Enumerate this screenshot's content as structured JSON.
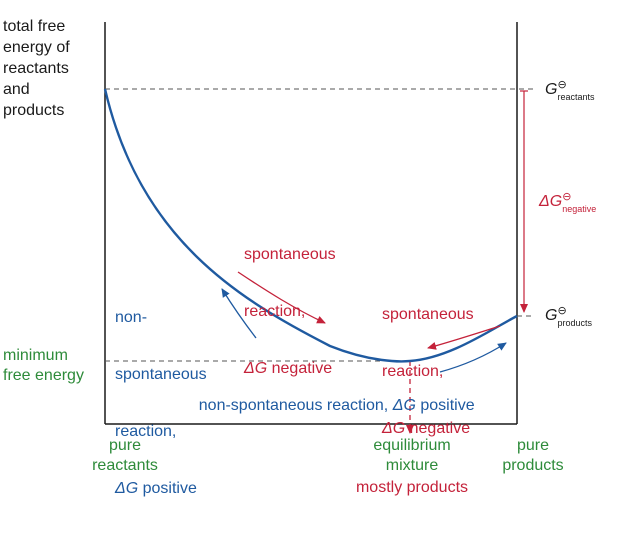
{
  "y_axis_label": "total free\nenergy of\nreactants\nand\nproducts",
  "minimum_label": "minimum\nfree energy",
  "x_left_label": "pure\nreactants",
  "x_middle_label": "equilibrium\nmixture",
  "x_middle_sub_label": "mostly products",
  "x_right_label": "pure\nproducts",
  "g_reactants": {
    "symbol": "G",
    "superscript": "⊖",
    "subscript": "reactants"
  },
  "g_products": {
    "symbol": "G",
    "superscript": "⊖",
    "subscript": "products"
  },
  "delta_g": {
    "symbol": "ΔG",
    "superscript": "⊖",
    "subscript": "negative"
  },
  "spont_left": {
    "line1": "spontaneous",
    "line2": "reaction,",
    "line3_italic": "ΔG",
    "line3_rest": " negative"
  },
  "spont_right": {
    "line1": "spontaneous",
    "line2": "reaction,",
    "line3_italic": "ΔG",
    "line3_rest": " negative"
  },
  "nonspont_left": {
    "line1": "non-",
    "line2": "spontaneous",
    "line3": "reaction,",
    "line4_italic": "ΔG",
    "line4_rest": " positive"
  },
  "nonspont_bottom": {
    "text": "non-spontaneous reaction, ",
    "italic": "ΔG",
    "rest": " positive"
  },
  "colors": {
    "curve": "#1f5aa0",
    "red": "#c4223a",
    "blue": "#1f5aa0",
    "green": "#2e8b3a",
    "axis": "#1a1a1a",
    "dash": "#555555"
  }
}
